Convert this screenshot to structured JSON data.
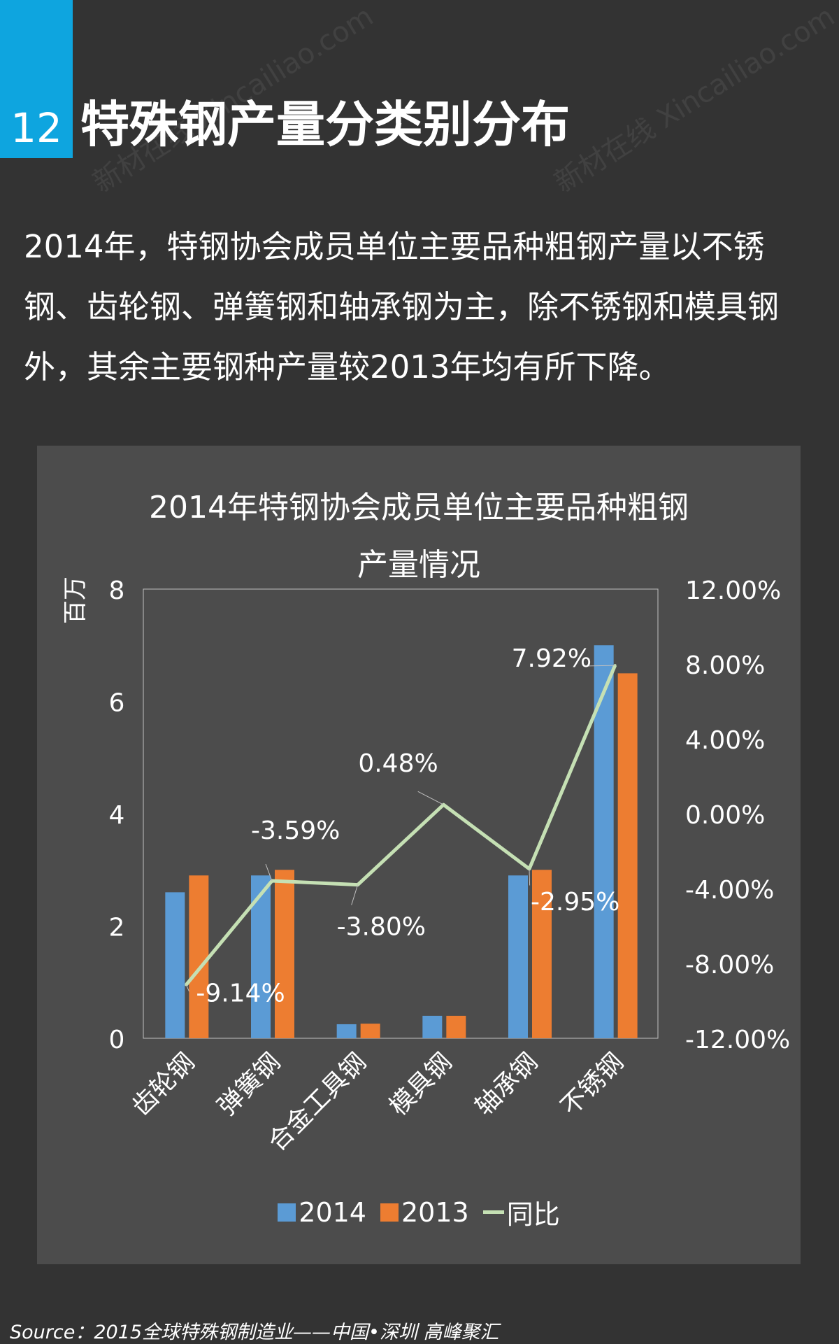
{
  "header": {
    "number": "12",
    "title": "特殊钢产量分类别分布"
  },
  "intro_text": "2014年，特钢协会成员单位主要品种粗钢产量以不锈钢、齿轮钢、弹簧钢和轴承钢为主，除不锈钢和模具钢外，其余主要钢种产量较2013年均有所下降。",
  "watermark_text": "新材在线 Xincailiao.com",
  "chart_data": {
    "type": "bar",
    "title_line1": "2014年特钢协会成员单位主要品种粗钢",
    "title_line2": "产量情况",
    "ylabel": "百万",
    "ylim": [
      0,
      8
    ],
    "yticks": [
      0,
      2,
      4,
      6,
      8
    ],
    "y2lim": [
      -12,
      12
    ],
    "y2ticks": [
      "-12.00%",
      "-8.00%",
      "-4.00%",
      "0.00%",
      "4.00%",
      "8.00%",
      "12.00%"
    ],
    "categories": [
      "齿轮钢",
      "弹簧钢",
      "合金工具钢",
      "模具钢",
      "轴承钢",
      "不锈钢"
    ],
    "series": [
      {
        "name": "2014",
        "type": "bar",
        "color": "#5b9bd5",
        "values": [
          2.6,
          2.9,
          0.25,
          0.4,
          2.9,
          7.0
        ]
      },
      {
        "name": "2013",
        "type": "bar",
        "color": "#ed7d31",
        "values": [
          2.9,
          3.0,
          0.26,
          0.4,
          3.0,
          6.5
        ]
      },
      {
        "name": "同比",
        "type": "line",
        "color": "#c5e0b4",
        "axis": "secondary",
        "values": [
          -9.14,
          -3.59,
          -3.8,
          0.48,
          -2.95,
          7.92
        ],
        "labels": [
          "-9.14%",
          "-3.59%",
          "-3.80%",
          "0.48%",
          "-2.95%",
          "7.92%"
        ]
      }
    ],
    "legend_position": "bottom",
    "grid": false
  },
  "source": "Source：2015全球特殊钢制造业——中国•深圳 高峰聚汇"
}
